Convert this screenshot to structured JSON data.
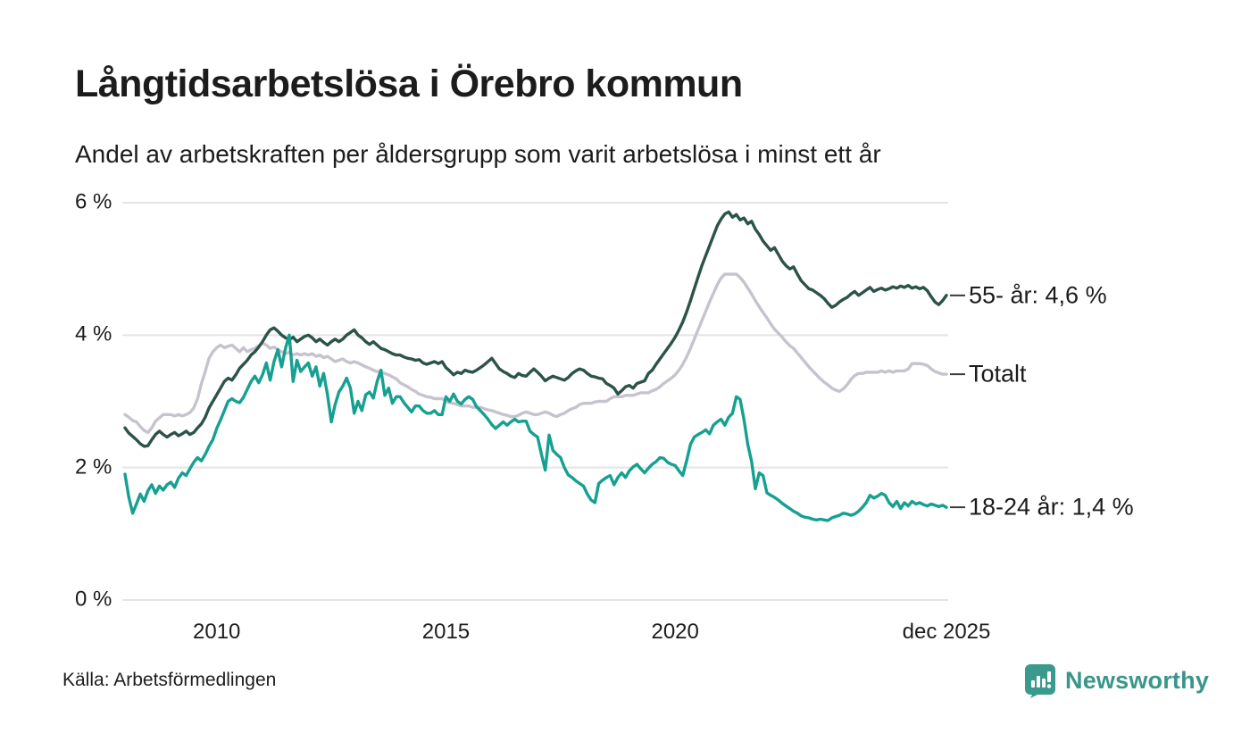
{
  "header": {
    "title": "Långtidsarbetslösa i Örebro kommun",
    "subtitle": "Andel av arbetskraften per åldersgrupp som varit arbetslösa i minst ett år"
  },
  "footer": {
    "source": "Källa: Arbetsförmedlingen",
    "brand": "Newsworthy",
    "brand_color": "#3a958b"
  },
  "chart_data": {
    "type": "line",
    "title": "Långtidsarbetslösa i Örebro kommun",
    "subtitle": "Andel av arbetskraften per åldersgrupp som varit arbetslösa i minst ett år",
    "x_start": "2008-01",
    "x_end": "2025-12",
    "x_frequency": "monthly",
    "ylim": [
      0,
      6.3
    ],
    "grid": "horizontal",
    "legend_position": "right-end-labels",
    "y_ticks": [
      {
        "label": "6 %",
        "value": 6
      },
      {
        "label": "4 %",
        "value": 4
      },
      {
        "label": "2 %",
        "value": 2
      },
      {
        "label": "0 %",
        "value": 0
      }
    ],
    "x_ticks": [
      {
        "label": "2010",
        "month_index": 24
      },
      {
        "label": "2015",
        "month_index": 84
      },
      {
        "label": "2020",
        "month_index": 144
      },
      {
        "label": "dec 2025",
        "month_index": 215
      }
    ],
    "draw_order": [
      1,
      0,
      2
    ],
    "series": [
      {
        "id": "55",
        "name": "55- år",
        "end_label": "55- år: 4,6 %",
        "last_value_label": "4,6 %",
        "color": "#2b5349",
        "values": [
          2.6,
          2.52,
          2.47,
          2.42,
          2.36,
          2.32,
          2.33,
          2.42,
          2.5,
          2.55,
          2.5,
          2.46,
          2.5,
          2.53,
          2.48,
          2.51,
          2.55,
          2.5,
          2.53,
          2.6,
          2.66,
          2.76,
          2.9,
          3.0,
          3.1,
          3.2,
          3.3,
          3.35,
          3.32,
          3.4,
          3.5,
          3.56,
          3.62,
          3.7,
          3.75,
          3.82,
          3.9,
          4.0,
          4.08,
          4.11,
          4.06,
          4.0,
          3.96,
          3.93,
          3.97,
          3.9,
          3.94,
          3.98,
          4.0,
          3.96,
          3.9,
          3.94,
          3.89,
          3.85,
          3.9,
          3.94,
          3.9,
          3.94,
          4.0,
          4.04,
          4.08,
          4.0,
          3.96,
          3.9,
          3.86,
          3.9,
          3.85,
          3.8,
          3.78,
          3.75,
          3.72,
          3.7,
          3.7,
          3.67,
          3.65,
          3.64,
          3.62,
          3.63,
          3.58,
          3.56,
          3.58,
          3.6,
          3.57,
          3.6,
          3.51,
          3.46,
          3.4,
          3.44,
          3.42,
          3.47,
          3.45,
          3.44,
          3.47,
          3.51,
          3.55,
          3.6,
          3.65,
          3.57,
          3.49,
          3.45,
          3.42,
          3.38,
          3.36,
          3.42,
          3.39,
          3.38,
          3.44,
          3.49,
          3.44,
          3.38,
          3.31,
          3.35,
          3.38,
          3.36,
          3.34,
          3.32,
          3.36,
          3.42,
          3.46,
          3.49,
          3.47,
          3.42,
          3.38,
          3.37,
          3.35,
          3.34,
          3.27,
          3.24,
          3.2,
          3.11,
          3.16,
          3.22,
          3.24,
          3.2,
          3.27,
          3.29,
          3.31,
          3.42,
          3.47,
          3.56,
          3.64,
          3.72,
          3.8,
          3.88,
          3.97,
          4.08,
          4.2,
          4.35,
          4.52,
          4.7,
          4.88,
          5.05,
          5.2,
          5.35,
          5.5,
          5.65,
          5.75,
          5.83,
          5.86,
          5.78,
          5.82,
          5.74,
          5.77,
          5.68,
          5.72,
          5.6,
          5.52,
          5.42,
          5.35,
          5.28,
          5.32,
          5.22,
          5.12,
          5.05,
          5.0,
          5.03,
          4.92,
          4.82,
          4.76,
          4.7,
          4.68,
          4.64,
          4.6,
          4.55,
          4.48,
          4.42,
          4.45,
          4.5,
          4.54,
          4.57,
          4.62,
          4.66,
          4.6,
          4.64,
          4.68,
          4.72,
          4.66,
          4.69,
          4.71,
          4.68,
          4.7,
          4.73,
          4.71,
          4.74,
          4.72,
          4.75,
          4.71,
          4.73,
          4.7,
          4.72,
          4.67,
          4.58,
          4.5,
          4.46,
          4.52,
          4.6
        ]
      },
      {
        "id": "totalt",
        "name": "Totalt",
        "end_label": "Totalt",
        "last_value_label": "",
        "color": "#c6c3ce",
        "values": [
          2.8,
          2.76,
          2.71,
          2.69,
          2.62,
          2.56,
          2.53,
          2.6,
          2.7,
          2.75,
          2.8,
          2.8,
          2.8,
          2.78,
          2.8,
          2.78,
          2.8,
          2.83,
          2.9,
          3.04,
          3.27,
          3.45,
          3.65,
          3.75,
          3.81,
          3.85,
          3.81,
          3.83,
          3.85,
          3.8,
          3.75,
          3.81,
          3.75,
          3.78,
          3.8,
          3.84,
          3.88,
          3.85,
          3.8,
          3.82,
          3.78,
          3.75,
          3.72,
          3.74,
          3.7,
          3.72,
          3.7,
          3.72,
          3.7,
          3.72,
          3.68,
          3.7,
          3.66,
          3.68,
          3.64,
          3.6,
          3.62,
          3.64,
          3.6,
          3.58,
          3.6,
          3.58,
          3.55,
          3.52,
          3.5,
          3.47,
          3.45,
          3.45,
          3.42,
          3.4,
          3.37,
          3.34,
          3.28,
          3.25,
          3.22,
          3.18,
          3.15,
          3.11,
          3.09,
          3.07,
          3.06,
          3.04,
          3.04,
          3.04,
          3.0,
          2.98,
          2.97,
          2.95,
          2.93,
          2.93,
          2.93,
          2.91,
          2.91,
          2.91,
          2.89,
          2.87,
          2.86,
          2.84,
          2.82,
          2.8,
          2.79,
          2.77,
          2.77,
          2.79,
          2.82,
          2.84,
          2.82,
          2.8,
          2.8,
          2.82,
          2.84,
          2.82,
          2.79,
          2.77,
          2.8,
          2.82,
          2.86,
          2.89,
          2.91,
          2.95,
          2.97,
          2.97,
          2.97,
          2.99,
          3.0,
          3.0,
          3.0,
          3.04,
          3.07,
          3.07,
          3.07,
          3.09,
          3.09,
          3.09,
          3.11,
          3.13,
          3.13,
          3.13,
          3.16,
          3.18,
          3.22,
          3.27,
          3.31,
          3.35,
          3.4,
          3.47,
          3.56,
          3.67,
          3.8,
          3.94,
          4.08,
          4.22,
          4.36,
          4.5,
          4.63,
          4.76,
          4.86,
          4.92,
          4.92,
          4.92,
          4.92,
          4.87,
          4.8,
          4.71,
          4.62,
          4.52,
          4.43,
          4.34,
          4.26,
          4.17,
          4.09,
          4.03,
          3.97,
          3.9,
          3.84,
          3.8,
          3.73,
          3.66,
          3.59,
          3.52,
          3.46,
          3.4,
          3.34,
          3.29,
          3.25,
          3.2,
          3.17,
          3.15,
          3.19,
          3.25,
          3.33,
          3.39,
          3.42,
          3.42,
          3.44,
          3.44,
          3.44,
          3.44,
          3.46,
          3.44,
          3.46,
          3.44,
          3.46,
          3.46,
          3.46,
          3.49,
          3.57,
          3.57,
          3.57,
          3.56,
          3.54,
          3.49,
          3.45,
          3.43,
          3.41,
          3.41
        ]
      },
      {
        "id": "18-24",
        "name": "18-24 år",
        "end_label": "18-24 år: 1,4 %",
        "last_value_label": "1,4 %",
        "color": "#16a091",
        "values": [
          1.9,
          1.55,
          1.31,
          1.45,
          1.6,
          1.49,
          1.65,
          1.74,
          1.61,
          1.72,
          1.66,
          1.74,
          1.78,
          1.7,
          1.84,
          1.92,
          1.88,
          1.98,
          2.08,
          2.15,
          2.1,
          2.2,
          2.32,
          2.42,
          2.59,
          2.72,
          2.86,
          3.0,
          3.04,
          3.0,
          2.98,
          3.06,
          3.18,
          3.3,
          3.38,
          3.28,
          3.4,
          3.58,
          3.32,
          3.6,
          3.78,
          3.52,
          3.8,
          4.0,
          3.3,
          3.62,
          3.45,
          3.52,
          3.58,
          3.38,
          3.52,
          3.23,
          3.42,
          3.1,
          2.69,
          2.95,
          3.14,
          3.23,
          3.35,
          3.2,
          2.82,
          3.0,
          2.86,
          3.1,
          3.14,
          3.05,
          3.3,
          3.47,
          3.09,
          3.2,
          2.97,
          3.07,
          3.07,
          2.98,
          2.91,
          2.84,
          2.93,
          2.93,
          2.86,
          2.82,
          2.82,
          2.86,
          2.8,
          2.8,
          3.07,
          3.0,
          3.11,
          3.0,
          2.96,
          3.03,
          3.07,
          3.03,
          2.92,
          2.86,
          2.8,
          2.73,
          2.65,
          2.59,
          2.64,
          2.69,
          2.64,
          2.69,
          2.73,
          2.69,
          2.7,
          2.7,
          2.55,
          2.5,
          2.46,
          2.2,
          1.96,
          2.49,
          2.26,
          2.2,
          2.15,
          2.0,
          1.89,
          1.85,
          1.8,
          1.76,
          1.72,
          1.6,
          1.51,
          1.47,
          1.76,
          1.81,
          1.85,
          1.88,
          1.74,
          1.85,
          1.92,
          1.85,
          1.95,
          2.01,
          2.05,
          1.98,
          1.92,
          1.99,
          2.05,
          2.09,
          2.15,
          2.14,
          2.08,
          2.05,
          2.03,
          1.95,
          1.88,
          2.1,
          2.35,
          2.46,
          2.5,
          2.53,
          2.57,
          2.51,
          2.64,
          2.69,
          2.73,
          2.64,
          2.76,
          2.82,
          3.07,
          3.03,
          2.73,
          2.35,
          2.09,
          1.68,
          1.92,
          1.88,
          1.62,
          1.58,
          1.55,
          1.51,
          1.46,
          1.42,
          1.38,
          1.34,
          1.31,
          1.27,
          1.25,
          1.24,
          1.22,
          1.21,
          1.22,
          1.21,
          1.2,
          1.24,
          1.26,
          1.28,
          1.31,
          1.3,
          1.28,
          1.3,
          1.34,
          1.4,
          1.47,
          1.58,
          1.54,
          1.57,
          1.61,
          1.58,
          1.47,
          1.41,
          1.49,
          1.38,
          1.47,
          1.42,
          1.49,
          1.45,
          1.47,
          1.44,
          1.42,
          1.45,
          1.43,
          1.41,
          1.43,
          1.4
        ]
      }
    ]
  }
}
